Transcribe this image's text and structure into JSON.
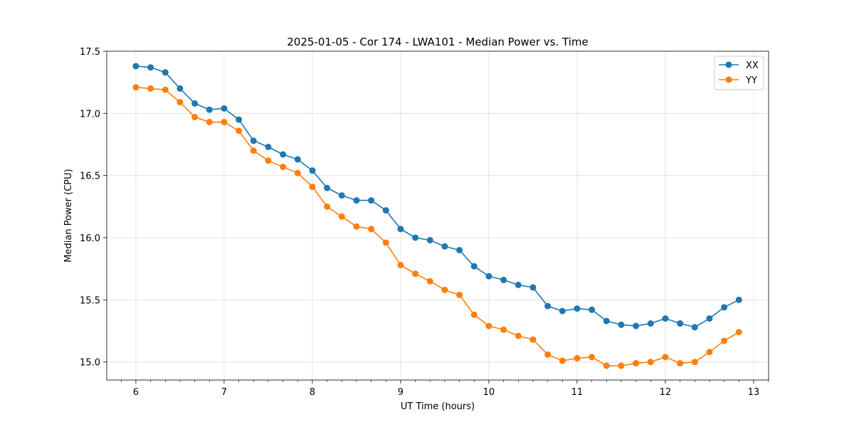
{
  "chart_data": {
    "type": "line",
    "title": "2025-01-05 - Cor 174 - LWA101 - Median Power vs. Time",
    "xlabel": "UT Time (hours)",
    "ylabel": "Median Power (CPU)",
    "xlim": [
      5.67,
      13.17
    ],
    "ylim": [
      14.855,
      17.5
    ],
    "xticks": [
      6,
      7,
      8,
      9,
      10,
      11,
      12,
      13
    ],
    "yticks": [
      15.0,
      15.5,
      16.0,
      16.5,
      17.0,
      17.5
    ],
    "ytick_labels": [
      "15.0",
      "15.5",
      "16.0",
      "16.5",
      "17.0",
      "17.5"
    ],
    "grid": true,
    "legend_position": "top-right",
    "x": [
      6.0,
      6.1667,
      6.3333,
      6.5,
      6.6667,
      6.8333,
      7.0,
      7.1667,
      7.3333,
      7.5,
      7.6667,
      7.8333,
      8.0,
      8.1667,
      8.3333,
      8.5,
      8.6667,
      8.8333,
      9.0,
      9.1667,
      9.3333,
      9.5,
      9.6667,
      9.8333,
      10.0,
      10.1667,
      10.3333,
      10.5,
      10.6667,
      10.8333,
      11.0,
      11.1667,
      11.3333,
      11.5,
      11.6667,
      11.8333,
      12.0,
      12.1667,
      12.3333,
      12.5,
      12.6667,
      12.8333
    ],
    "series": [
      {
        "name": "XX",
        "color": "#1f77b4",
        "values": [
          17.38,
          17.37,
          17.33,
          17.2,
          17.08,
          17.03,
          17.04,
          16.95,
          16.78,
          16.73,
          16.67,
          16.63,
          16.54,
          16.4,
          16.34,
          16.3,
          16.3,
          16.22,
          16.07,
          16.0,
          15.98,
          15.93,
          15.9,
          15.77,
          15.69,
          15.66,
          15.62,
          15.6,
          15.45,
          15.41,
          15.43,
          15.42,
          15.33,
          15.3,
          15.29,
          15.31,
          15.35,
          15.31,
          15.28,
          15.35,
          15.44,
          15.5
        ]
      },
      {
        "name": "YY",
        "color": "#ff7f0e",
        "values": [
          17.21,
          17.2,
          17.19,
          17.09,
          16.97,
          16.93,
          16.93,
          16.86,
          16.7,
          16.62,
          16.57,
          16.52,
          16.41,
          16.25,
          16.17,
          16.09,
          16.07,
          15.96,
          15.78,
          15.71,
          15.65,
          15.58,
          15.54,
          15.38,
          15.29,
          15.26,
          15.21,
          15.18,
          15.06,
          15.01,
          15.03,
          15.04,
          14.97,
          14.97,
          14.99,
          15.0,
          15.04,
          14.99,
          15.0,
          15.08,
          15.17,
          15.24
        ]
      }
    ]
  }
}
